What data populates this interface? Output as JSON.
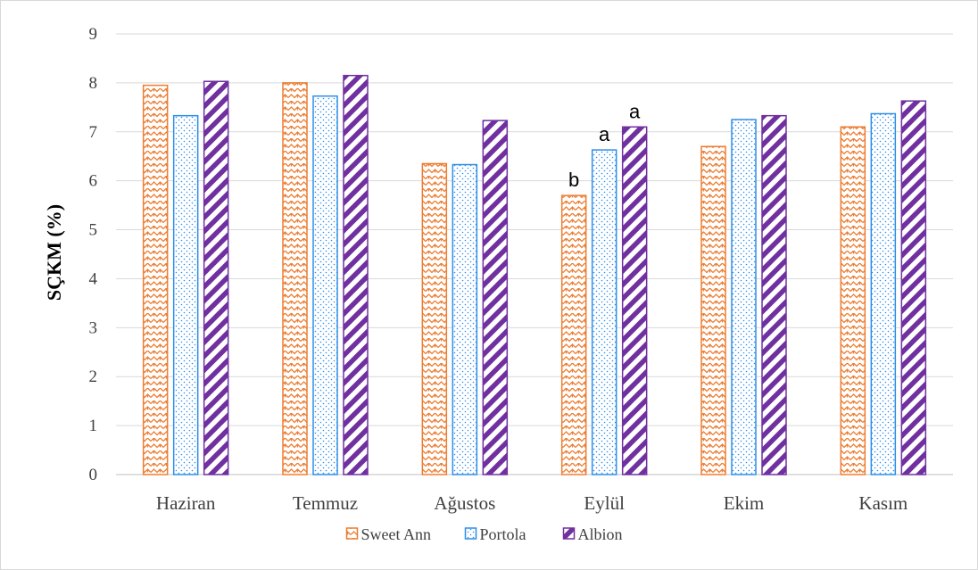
{
  "chart_data": {
    "type": "bar",
    "ylabel": "SÇKM (%)",
    "xlabel": "",
    "ylim": [
      0,
      9
    ],
    "yticks": [
      0,
      1,
      2,
      3,
      4,
      5,
      6,
      7,
      8,
      9
    ],
    "grid": true,
    "legend_position": "bottom",
    "categories": [
      "Haziran",
      "Temmuz",
      "Ağustos",
      "Eylül",
      "Ekim",
      "Kasım"
    ],
    "series": [
      {
        "name": "Sweet Ann",
        "color": "#ed7d31",
        "pattern": "zigzag-weave",
        "values": [
          7.95,
          8.0,
          6.35,
          5.7,
          6.7,
          7.1
        ]
      },
      {
        "name": "Portola",
        "color": "#2e8ee8",
        "pattern": "dots",
        "values": [
          7.33,
          7.73,
          6.33,
          6.63,
          7.25,
          7.37
        ]
      },
      {
        "name": "Albion",
        "color": "#7030a0",
        "pattern": "diagonal-stripes",
        "values": [
          8.03,
          8.15,
          7.23,
          7.1,
          7.33,
          7.63
        ]
      }
    ],
    "annotations": [
      {
        "category": "Eylül",
        "series": "Sweet Ann",
        "text": "b"
      },
      {
        "category": "Eylül",
        "series": "Portola",
        "text": "a"
      },
      {
        "category": "Eylül",
        "series": "Albion",
        "text": "a"
      }
    ]
  }
}
